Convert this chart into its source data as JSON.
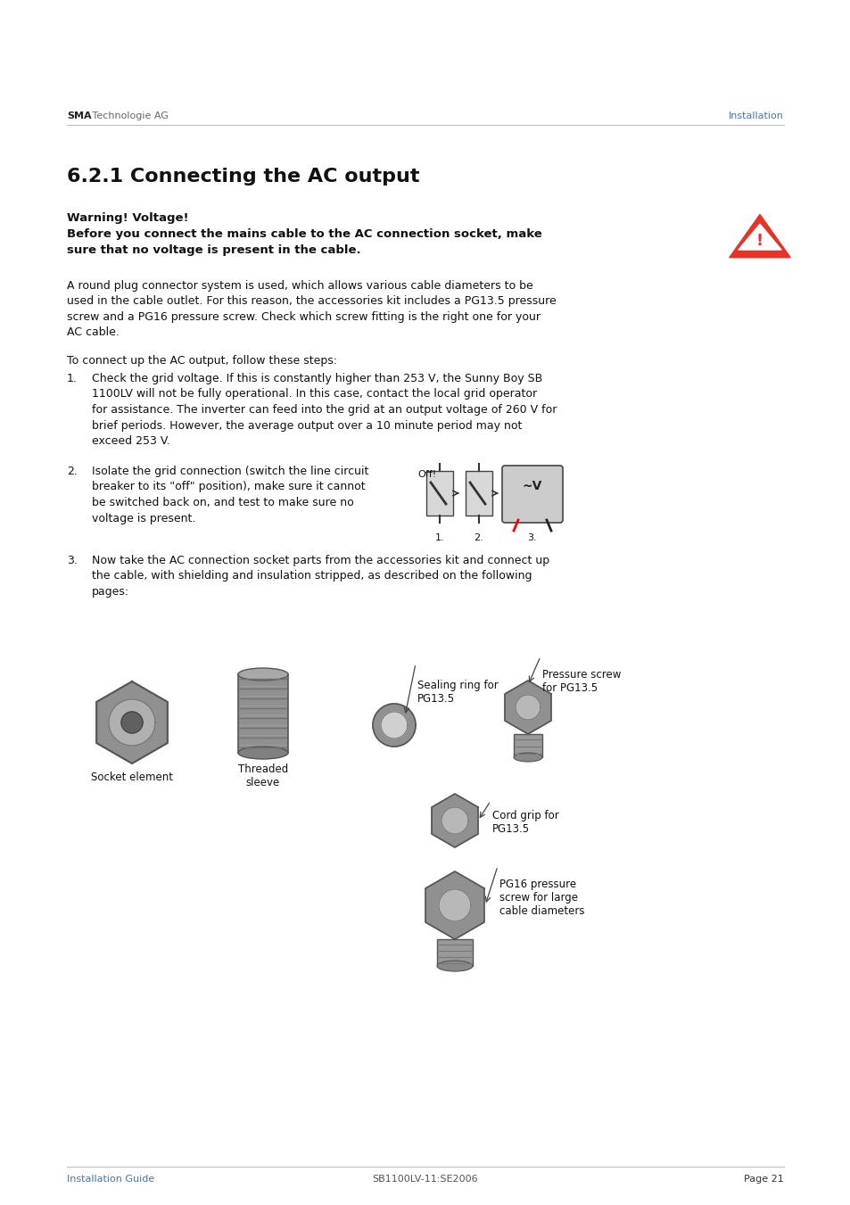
{
  "bg_color": "#ffffff",
  "header_left_bold": "SMA",
  "header_left_normal": " Technologie AG",
  "header_right": "Installation",
  "header_right_color": "#4472C4",
  "section_title": "6.2.1 Connecting the AC output",
  "warning_title": "Warning! Voltage!",
  "warning_body_line1": "Before you connect the mains cable to the AC connection socket, make",
  "warning_body_line2": "sure that no voltage is present in the cable.",
  "body_para1": "A round plug connector system is used, which allows various cable diameters to be\nused in the cable outlet. For this reason, the accessories kit includes a PG13.5 pressure\nscrew and a PG16 pressure screw. Check which screw fitting is the right one for your\nAC cable.",
  "body_para2": "To connect up the AC output, follow these steps:",
  "step1_num": "1.",
  "step1_text": "Check the grid voltage. If this is constantly higher than 253 V, the Sunny Boy SB\n1100LV will not be fully operational. In this case, contact the local grid operator\nfor assistance. The inverter can feed into the grid at an output voltage of 260 V for\nbrief periods. However, the average output over a 10 minute period may not\nexceed 253 V.",
  "step2_num": "2.",
  "step2_text": "Isolate the grid connection (switch the line circuit\nbreaker to its \"off\" position), make sure it cannot\nbe switched back on, and test to make sure no\nvoltage is present.",
  "step2_off_label": "Off!",
  "step2_sub_nums": [
    "1.",
    "2.",
    "3."
  ],
  "step3_num": "3.",
  "step3_text": "Now take the AC connection socket parts from the accessories kit and connect up\nthe cable, with shielding and insulation stripped, as described on the following\npages:",
  "label_socket": "Socket element",
  "label_threaded": "Threaded\nsleeve",
  "label_sealing": "Sealing ring for\nPG13.5",
  "label_pressure": "Pressure screw\nfor PG13.5",
  "label_cord": "Cord grip for\nPG13.5",
  "label_pg16": "PG16 pressure\nscrew for large\ncable diameters",
  "footer_left": "Installation Guide",
  "footer_left_color": "#4472C4",
  "footer_center": "SB1100LV-11:SE2006",
  "footer_right": "Page 21"
}
